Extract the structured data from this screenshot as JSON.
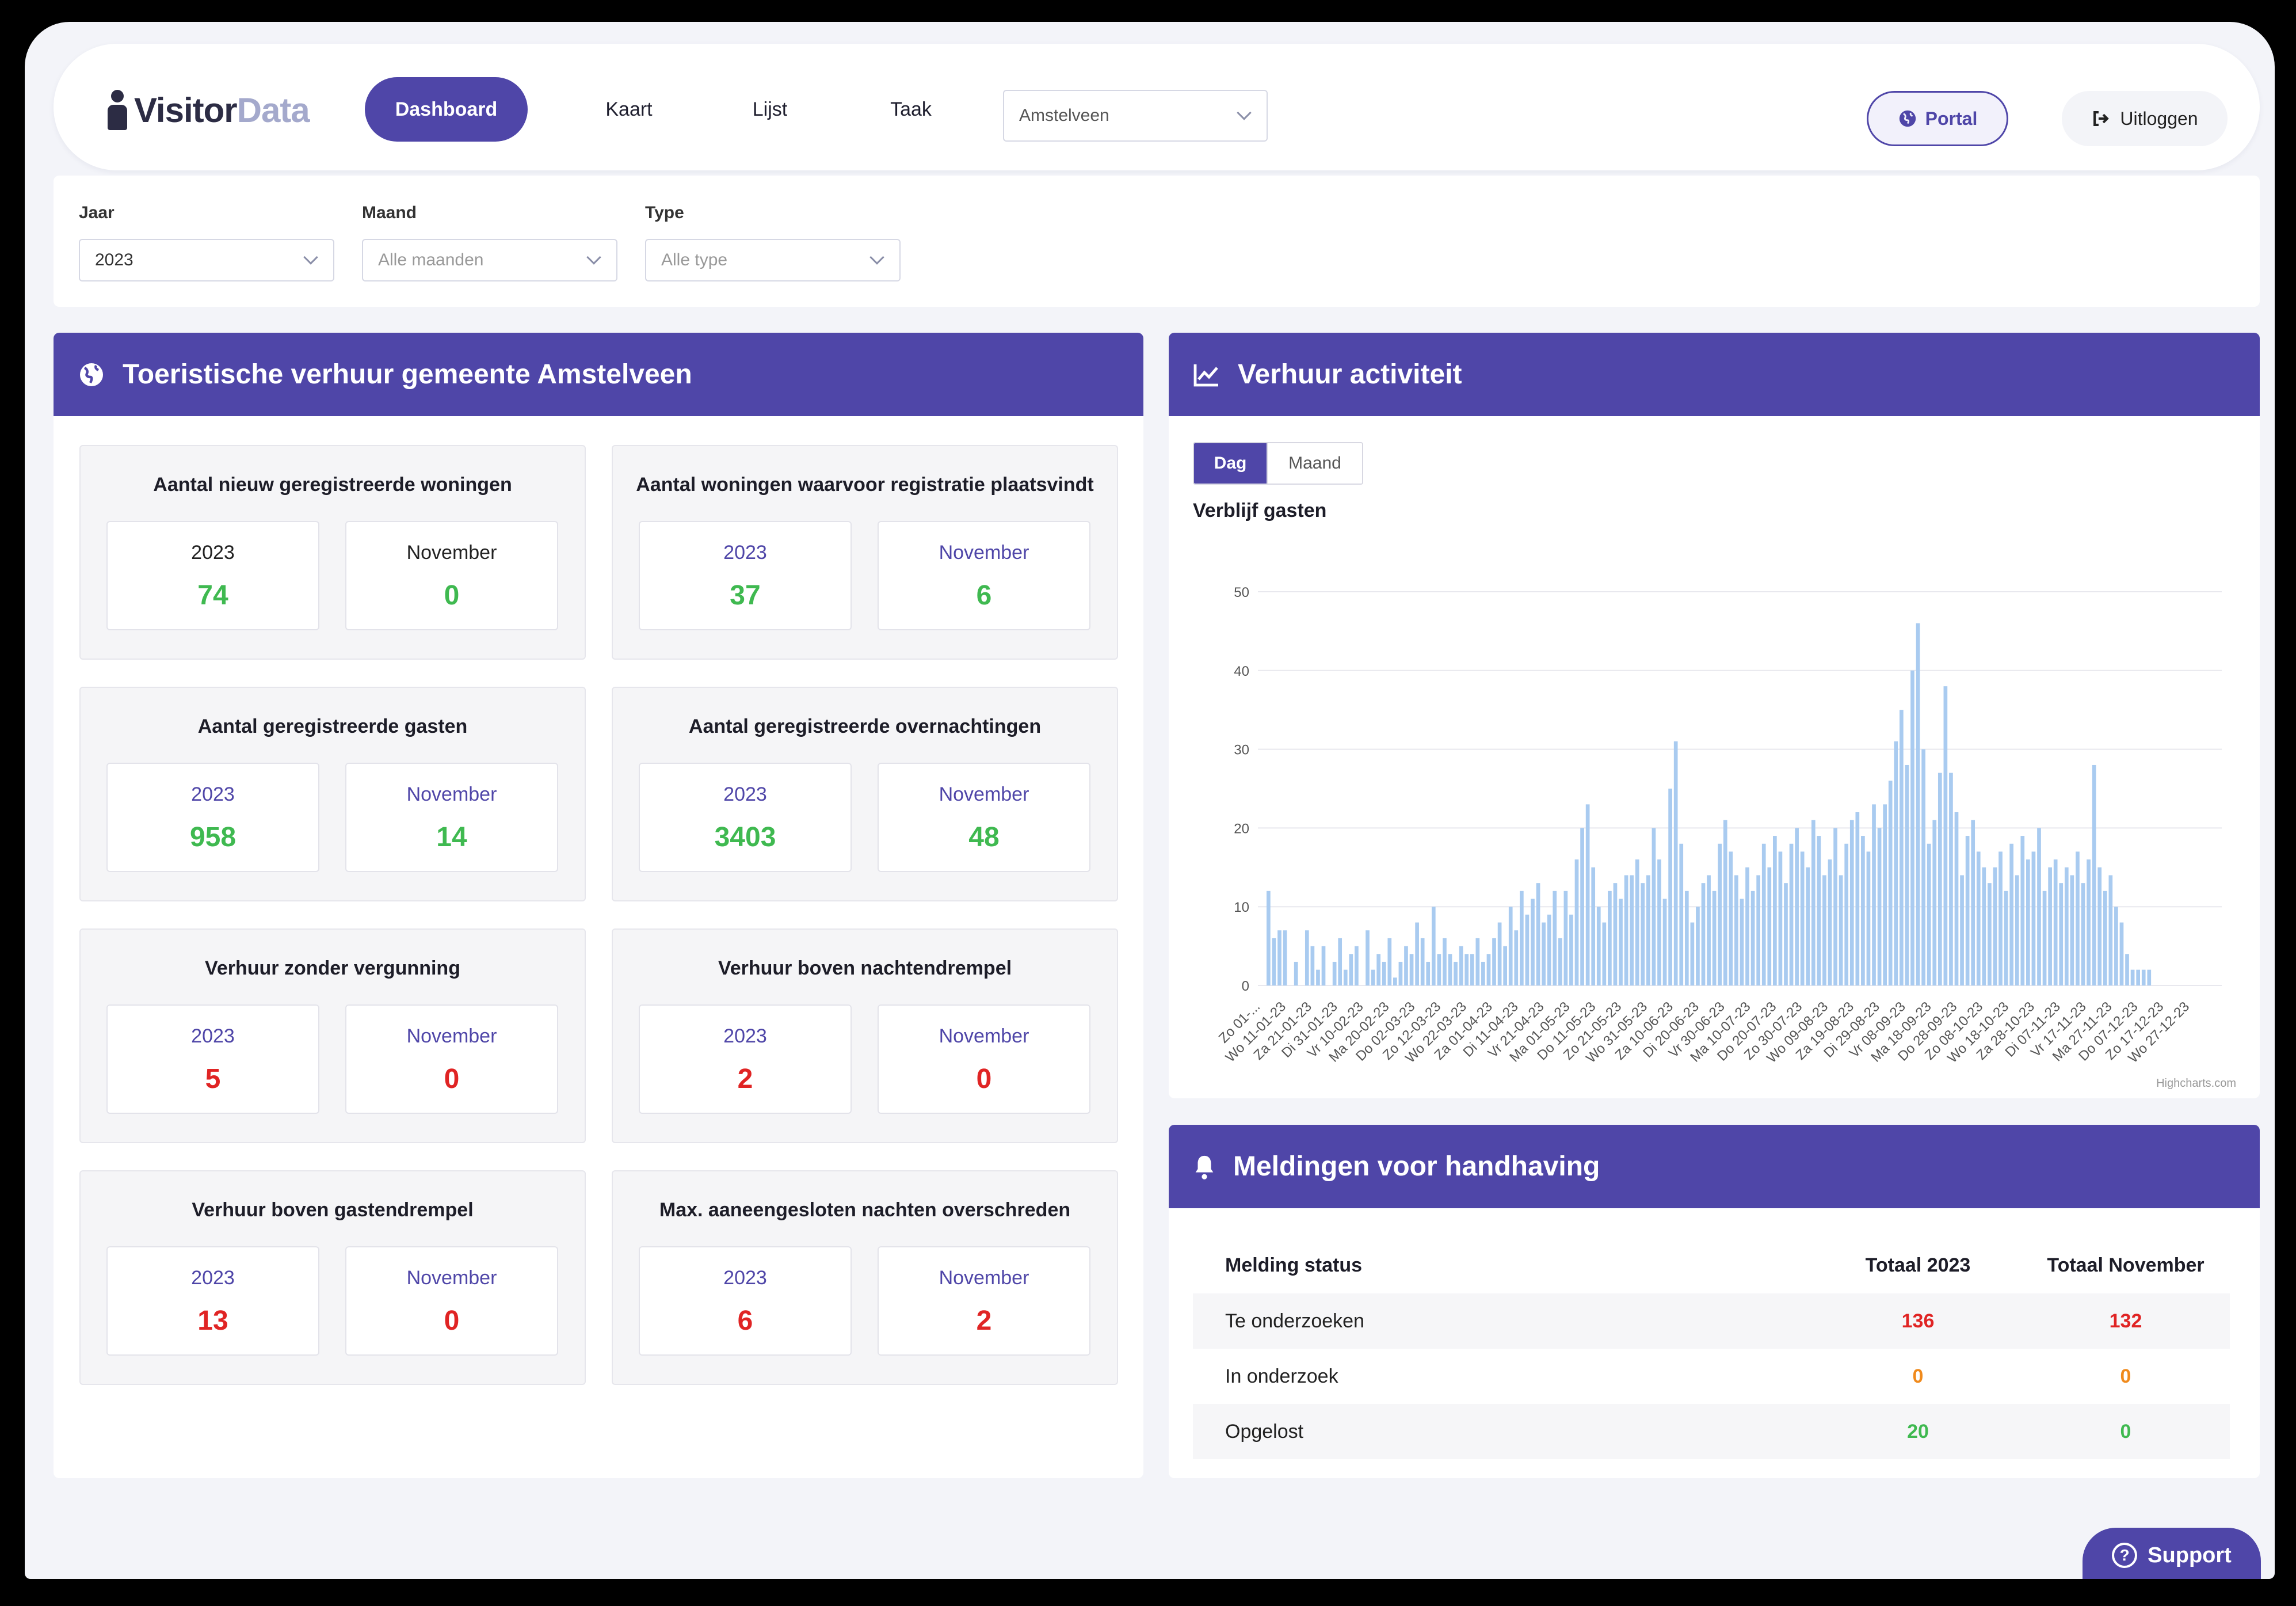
{
  "brand": {
    "part1": "Visitor",
    "part2": "Data"
  },
  "nav": {
    "items": [
      {
        "label": "Dashboard",
        "active": true
      },
      {
        "label": "Kaart",
        "active": false
      },
      {
        "label": "Lijst",
        "active": false
      },
      {
        "label": "Taak",
        "active": false
      }
    ],
    "municipality_select": "Amstelveen",
    "portal_label": "Portal",
    "logout_label": "Uitloggen"
  },
  "filters": {
    "jaar": {
      "label": "Jaar",
      "value": "2023"
    },
    "maand": {
      "label": "Maand",
      "value": "Alle maanden"
    },
    "type": {
      "label": "Type",
      "value": "Alle type"
    }
  },
  "left_panel": {
    "title": "Toeristische verhuur gemeente Amstelveen",
    "cards": [
      {
        "title": "Aantal nieuw geregistreerde woningen",
        "a_label": "2023",
        "a_value": "74",
        "b_label": "November",
        "b_value": "0",
        "color": "green",
        "label_color": "#222"
      },
      {
        "title": "Aantal woningen waarvoor registratie plaatsvindt",
        "a_label": "2023",
        "a_value": "37",
        "b_label": "November",
        "b_value": "6",
        "color": "green",
        "label_color": "#4f46a8"
      },
      {
        "title": "Aantal geregistreerde gasten",
        "a_label": "2023",
        "a_value": "958",
        "b_label": "November",
        "b_value": "14",
        "color": "green",
        "label_color": "#4f46a8"
      },
      {
        "title": "Aantal geregistreerde overnachtingen",
        "a_label": "2023",
        "a_value": "3403",
        "b_label": "November",
        "b_value": "48",
        "color": "green",
        "label_color": "#4f46a8"
      },
      {
        "title": "Verhuur zonder vergunning",
        "a_label": "2023",
        "a_value": "5",
        "b_label": "November",
        "b_value": "0",
        "color": "red",
        "label_color": "#4f46a8"
      },
      {
        "title": "Verhuur boven nachtendrempel",
        "a_label": "2023",
        "a_value": "2",
        "b_label": "November",
        "b_value": "0",
        "color": "red",
        "label_color": "#4f46a8"
      },
      {
        "title": "Verhuur boven gastendrempel",
        "a_label": "2023",
        "a_value": "13",
        "b_label": "November",
        "b_value": "0",
        "color": "red",
        "label_color": "#4f46a8"
      },
      {
        "title": "Max. aaneengesloten nachten overschreden",
        "a_label": "2023",
        "a_value": "6",
        "b_label": "November",
        "b_value": "2",
        "color": "red",
        "label_color": "#4f46a8"
      }
    ]
  },
  "chart_panel": {
    "title": "Verhuur activiteit",
    "tabs": [
      "Dag",
      "Maand"
    ],
    "credit": "Highcharts.com"
  },
  "chart_data": {
    "type": "bar",
    "title": "Verblijf gasten",
    "ylim": [
      0,
      50
    ],
    "yticks": [
      0,
      10,
      20,
      30,
      40,
      50
    ],
    "grid": true,
    "xtick_labels": [
      "Zo 01-...",
      "Wo 11-01-23",
      "Za 21-01-23",
      "Di 31-01-23",
      "Vr 10-02-23",
      "Ma 20-02-23",
      "Do 02-03-23",
      "Zo 12-03-23",
      "Wo 22-03-23",
      "Za 01-04-23",
      "Di 11-04-23",
      "Vr 21-04-23",
      "Ma 01-05-23",
      "Do 11-05-23",
      "Zo 21-05-23",
      "Wo 31-05-23",
      "Za 10-06-23",
      "Di 20-06-23",
      "Vr 30-06-23",
      "Ma 10-07-23",
      "Do 20-07-23",
      "Zo 30-07-23",
      "Wo 09-08-23",
      "Za 19-08-23",
      "Di 29-08-23",
      "Vr 08-09-23",
      "Ma 18-09-23",
      "Do 28-09-23",
      "Zo 08-10-23",
      "Wo 18-10-23",
      "Za 28-10-23",
      "Di 07-11-23",
      "Vr 17-11-23",
      "Ma 27-11-23",
      "Do 07-12-23",
      "Zo 17-12-23",
      "Wo 27-12-23"
    ],
    "segments": [
      [
        0,
        9,
        [
          12,
          6,
          7,
          7,
          0,
          3,
          0,
          7,
          5,
          2,
          5,
          0,
          3
        ]
      ],
      [
        10,
        19,
        [
          6,
          2,
          4,
          5,
          0,
          7,
          2,
          4,
          3,
          6,
          1,
          3
        ]
      ],
      [
        20,
        29,
        [
          5,
          4,
          8,
          6,
          3,
          10,
          4,
          6,
          4,
          3,
          5,
          4,
          4,
          6
        ]
      ],
      [
        30,
        39,
        [
          3,
          4,
          6,
          8,
          5,
          10,
          7,
          12,
          9,
          11,
          13,
          8,
          9,
          12
        ]
      ],
      [
        40,
        49,
        [
          6,
          12,
          9,
          16,
          20,
          23,
          15,
          10,
          8,
          12,
          13,
          11,
          14
        ]
      ],
      [
        50,
        59,
        [
          14,
          16,
          13,
          14,
          20,
          16,
          11,
          25,
          31,
          18,
          12,
          8,
          10
        ]
      ],
      [
        60,
        69,
        [
          13,
          14,
          12,
          18,
          21,
          17,
          14,
          11,
          15,
          12,
          14,
          18,
          15
        ]
      ],
      [
        70,
        79,
        [
          19,
          17,
          13,
          18,
          20,
          17,
          15,
          21,
          19,
          14,
          16,
          20,
          14
        ]
      ],
      [
        80,
        89,
        [
          18,
          21,
          22,
          19,
          17,
          23,
          20,
          23,
          26,
          31,
          35,
          28,
          40,
          46
        ]
      ],
      [
        90,
        99,
        [
          30,
          18,
          21,
          27,
          38,
          27,
          22,
          14,
          19,
          21,
          17,
          15,
          13
        ]
      ],
      [
        100,
        109,
        [
          15,
          17,
          12,
          18,
          14,
          19,
          16,
          17,
          20,
          12,
          15,
          16,
          13
        ]
      ],
      [
        110,
        119,
        [
          15,
          14,
          17,
          13,
          16,
          28,
          15,
          12,
          14,
          10,
          8,
          4,
          2,
          2,
          2,
          2
        ]
      ]
    ]
  },
  "alerts_panel": {
    "title": "Meldingen voor handhaving",
    "columns": [
      "Melding status",
      "Totaal 2023",
      "Totaal November"
    ],
    "rows": [
      {
        "status": "Te onderzoeken",
        "total_year": "136",
        "total_month": "132",
        "color": "#e02424"
      },
      {
        "status": "In onderzoek",
        "total_year": "0",
        "total_month": "0",
        "color": "#f08a1c"
      },
      {
        "status": "Opgelost",
        "total_year": "20",
        "total_month": "0",
        "color": "#3fb950"
      }
    ]
  },
  "support_label": "Support",
  "colors": {
    "accent": "#4f46a8",
    "green": "#3fb950",
    "red": "#e02424",
    "orange": "#f08a1c",
    "bar": "#a9cbf0"
  }
}
